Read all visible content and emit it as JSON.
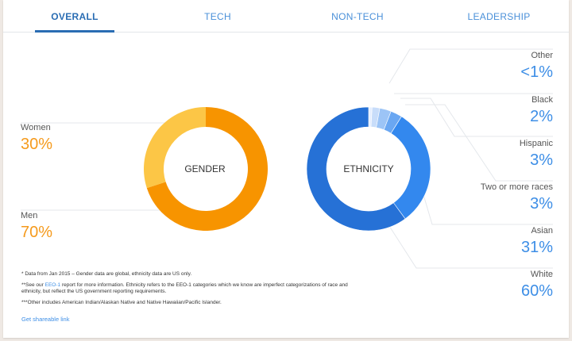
{
  "tabs": [
    {
      "label": "OVERALL",
      "active": true
    },
    {
      "label": "TECH",
      "active": false
    },
    {
      "label": "NON-TECH",
      "active": false
    },
    {
      "label": "LEADERSHIP",
      "active": false
    }
  ],
  "colors": {
    "accent": "#2a6db3",
    "gender_women": "#fcc646",
    "gender_men": "#f79400",
    "eth_white": "#2671d6",
    "eth_asian": "#3388ee",
    "eth_two_plus": "#6aa7f2",
    "eth_hispanic": "#9cc4f6",
    "eth_black": "#c8ddfa",
    "eth_other": "#e6efff"
  },
  "chart_data": [
    {
      "type": "pie",
      "title": "GENDER",
      "categories": [
        "Women",
        "Men"
      ],
      "values": [
        30,
        70
      ],
      "value_labels": [
        "30%",
        "70%"
      ]
    },
    {
      "type": "pie",
      "title": "ETHNICITY",
      "categories": [
        "Other",
        "Black",
        "Hispanic",
        "Two or more races",
        "Asian",
        "White"
      ],
      "values": [
        0.9,
        2,
        3,
        3,
        31,
        60
      ],
      "value_labels": [
        "<1%",
        "2%",
        "3%",
        "3%",
        "31%",
        "60%"
      ]
    }
  ],
  "notes": {
    "n1": "* Data from Jan 2015 – Gender data are global, ethnicity data are US only.",
    "n2_pre": "**See our ",
    "n2_link": "EEO-1",
    "n2_post": " report for more information. Ethnicity refers to the EEO-1 categories which we know are imperfect categorizations of race and ethnicity, but reflect the US government reporting requirements.",
    "n3": "***Other includes American Indian/Alaskan Native and Native Hawaiian/Pacific Islander."
  },
  "share_link": "Get shareable link"
}
